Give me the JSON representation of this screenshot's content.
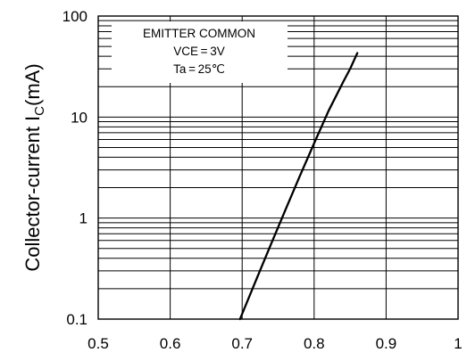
{
  "chart_data": {
    "type": "line",
    "title": "",
    "xlabel": "",
    "ylabel": "Collector-current I",
    "ylabel_subscript": "C",
    "ylabel_unit": "(mA)",
    "xlim": [
      0.5,
      1.0
    ],
    "ylim": [
      0.1,
      100
    ],
    "yscale": "log",
    "grid": true,
    "x_ticks": [
      0.5,
      0.6,
      0.7,
      0.8,
      0.9,
      1.0
    ],
    "x_tick_labels": [
      "0.5",
      "0.6",
      "0.7",
      "0.8",
      "0.9",
      "1"
    ],
    "y_ticks": [
      0.1,
      1,
      10,
      100
    ],
    "y_tick_labels": [
      "0.1",
      "1",
      "10",
      "100"
    ],
    "annotation": {
      "lines": [
        "EMITTER  COMMON",
        "VCE = 3V",
        "Ta = 25℃"
      ],
      "placement": "top-left"
    },
    "series": [
      {
        "x": [
          0.697,
          0.72,
          0.74,
          0.76,
          0.78,
          0.8,
          0.82,
          0.84,
          0.85,
          0.86
        ],
        "y": [
          0.1,
          0.25,
          0.55,
          1.2,
          2.6,
          5.5,
          11.5,
          22,
          30,
          43
        ],
        "color": "#000000"
      }
    ]
  }
}
